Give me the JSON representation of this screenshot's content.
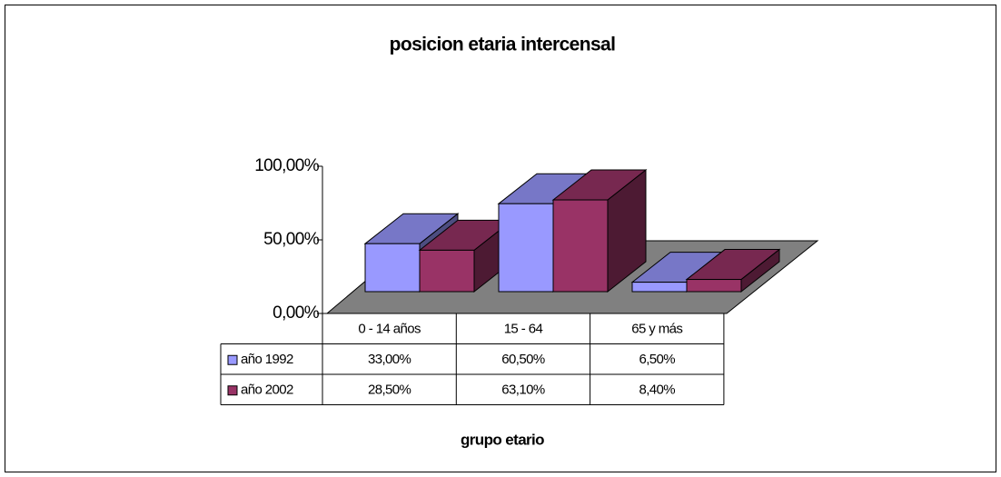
{
  "chart_data": {
    "type": "bar3d",
    "title": "posicion etaria intercensal",
    "x_label": "grupo etario",
    "categories": [
      "0 - 14 años",
      "15 - 64",
      "65 y más"
    ],
    "series": [
      {
        "name": "año 1992",
        "color": "#9999ff",
        "values": [
          33,
          60.5,
          6.5
        ],
        "value_labels": [
          "33,00%",
          "60,50%",
          "6,50%"
        ]
      },
      {
        "name": "año 2002",
        "color": "#993366",
        "values": [
          28.5,
          63.1,
          8.4
        ],
        "value_labels": [
          "28,50%",
          "63,10%",
          "8,40%"
        ]
      }
    ],
    "ylim": [
      0,
      100
    ],
    "yticks": [
      {
        "value": 0,
        "label": "0,00%"
      },
      {
        "value": 50,
        "label": "50,00%"
      },
      {
        "value": 100,
        "label": "100,00%"
      }
    ],
    "data_table": true
  }
}
